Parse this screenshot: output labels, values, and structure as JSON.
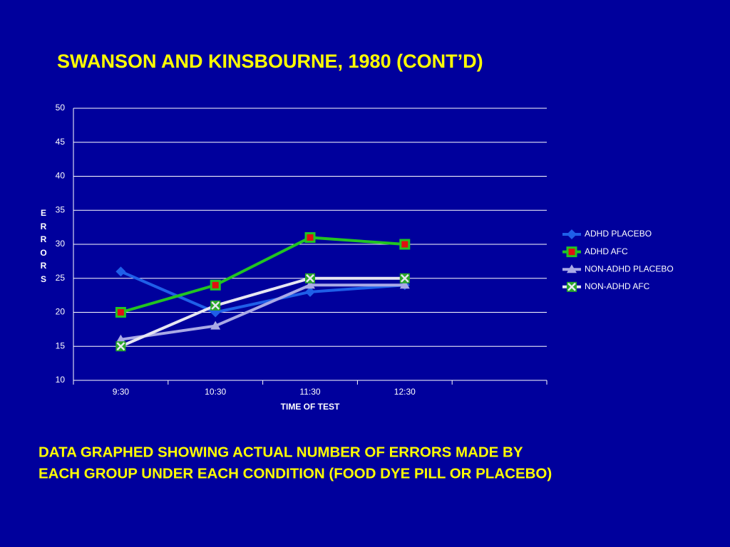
{
  "chart_data": {
    "type": "line",
    "title": "SWANSON AND KINSBOURNE, 1980 (CONT’D)",
    "annotations": [
      "DATA GRAPHED SHOWING ACTUAL  NUMBER OF ERRORS MADE BY",
      "EACH GROUP UNDER EACH CONDITION (FOOD DYE PILL OR PLACEBO)"
    ],
    "x_label": "TIME OF TEST",
    "y_label": "ERRORS",
    "categories": [
      "9:30",
      "10:30",
      "11:30",
      "12:30",
      null
    ],
    "series": [
      {
        "name": "ADHD PLACEBO",
        "color": "#1f5fe8",
        "marker": "diamond",
        "values": [
          26,
          20,
          23,
          24,
          null
        ]
      },
      {
        "name": "ADHD AFC",
        "color": "#22c422",
        "marker": "square",
        "values": [
          20,
          24,
          31,
          30,
          null
        ]
      },
      {
        "name": "NON-ADHD PLACEBO",
        "color": "#a9a9e6",
        "marker": "triangle",
        "values": [
          16,
          18,
          24,
          24,
          null
        ]
      },
      {
        "name": "NON-ADHD AFC",
        "color": "#e6e6f2",
        "marker": "xbox",
        "values": [
          15,
          21,
          25,
          25,
          null
        ]
      }
    ],
    "ylim": [
      10,
      50
    ],
    "yticks": [
      10,
      15,
      20,
      25,
      30,
      35,
      40,
      45,
      50
    ],
    "grid": true,
    "legend": "right"
  }
}
